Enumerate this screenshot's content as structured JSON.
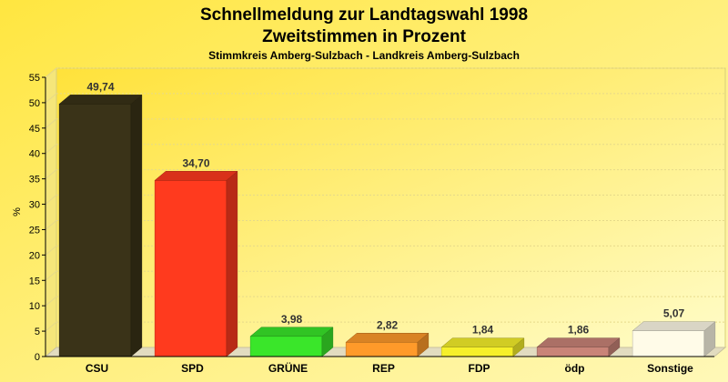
{
  "chart_data": {
    "type": "bar",
    "title": "Schnellmeldung zur Landtagswahl 1998",
    "subtitle": "Zweitstimmen in Prozent",
    "subtitle2": "Stimmkreis Amberg-Sulzbach - Landkreis Amberg-Sulzbach",
    "ylabel": "%",
    "xlabel": "",
    "ylim": [
      0,
      55
    ],
    "yticks": [
      0,
      5,
      10,
      15,
      20,
      25,
      30,
      35,
      40,
      45,
      50,
      55
    ],
    "grid": true,
    "categories": [
      "CSU",
      "SPD",
      "GRÜNE",
      "REP",
      "FDP",
      "ödp",
      "Sonstige"
    ],
    "values": [
      49.74,
      34.7,
      3.98,
      2.82,
      1.84,
      1.86,
      5.07
    ],
    "value_labels": [
      "49,74",
      "34,70",
      "3,98",
      "2,82",
      "1,84",
      "1,86",
      "5,07"
    ],
    "colors": [
      "#3a3318",
      "#ff3a1e",
      "#3ae62a",
      "#ff9a2a",
      "#f6f02a",
      "#c98478",
      "#fffbe8"
    ]
  }
}
